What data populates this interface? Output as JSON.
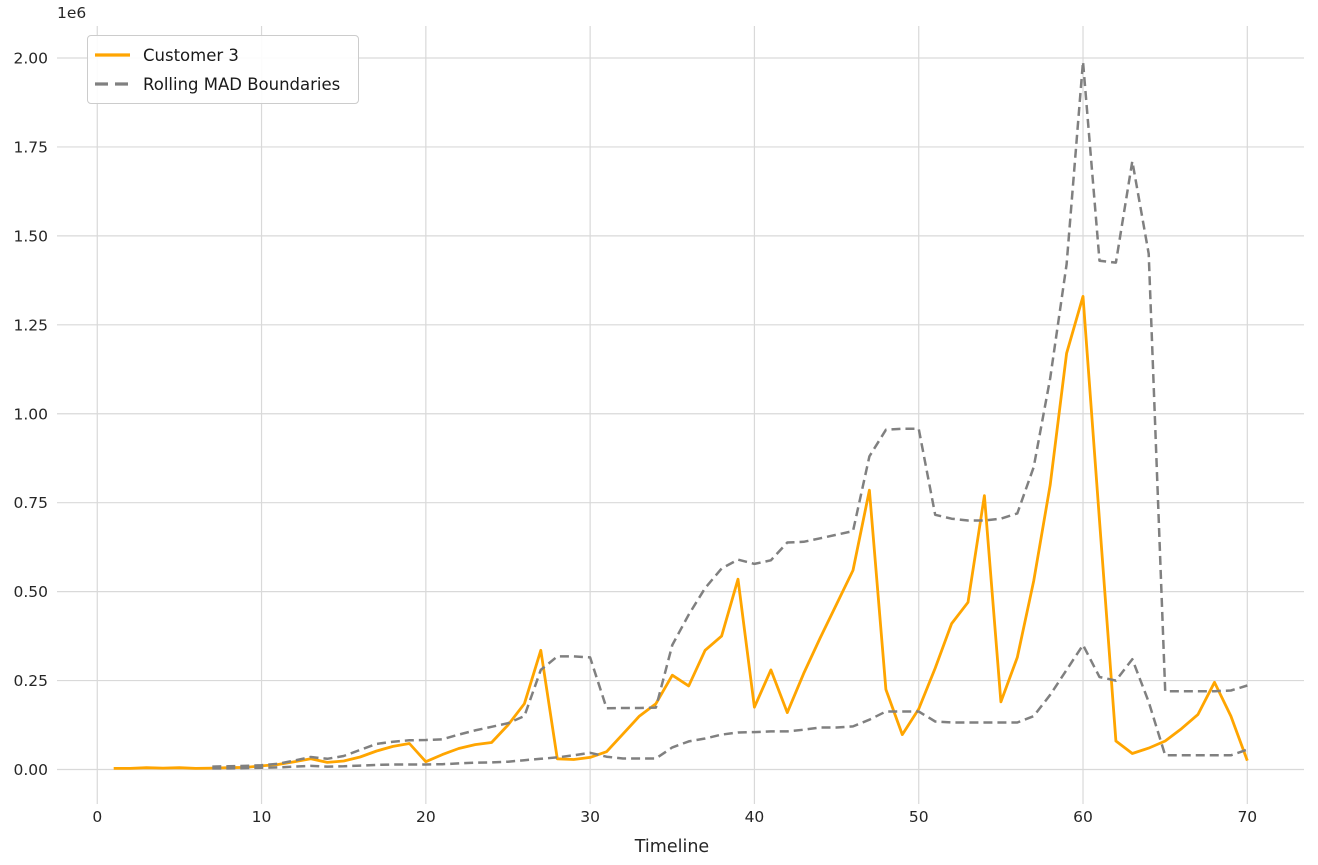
{
  "figure": {
    "background_color": "#ffffff",
    "grid_color": "#d9d9d9",
    "text_color": "#262626"
  },
  "chart_data": {
    "type": "line",
    "title": "",
    "xlabel": "Timeline",
    "ylabel": "",
    "y_offset_label": "1e6",
    "grid": true,
    "legend_position": "upper left",
    "xlim": [
      -2.45,
      73.45
    ],
    "ylim": [
      -97000,
      2090000
    ],
    "x_ticks": {
      "values": [
        0,
        10,
        20,
        30,
        40,
        50,
        60,
        70
      ],
      "labels": [
        "0",
        "10",
        "20",
        "30",
        "40",
        "50",
        "60",
        "70"
      ]
    },
    "y_ticks": {
      "values": [
        0,
        250000,
        500000,
        750000,
        1000000,
        1250000,
        1500000,
        1750000,
        2000000
      ],
      "labels": [
        "0.00",
        "0.25",
        "0.50",
        "0.75",
        "1.00",
        "1.25",
        "1.50",
        "1.75",
        "2.00"
      ]
    },
    "legend": [
      {
        "label": "Customer 3",
        "color": "#FFA500",
        "style": "solid"
      },
      {
        "label": "Rolling MAD Boundaries",
        "color": "#808080",
        "style": "dashed"
      }
    ],
    "x": [
      1,
      2,
      3,
      4,
      5,
      6,
      7,
      8,
      9,
      10,
      11,
      12,
      13,
      14,
      15,
      16,
      17,
      18,
      19,
      20,
      21,
      22,
      23,
      24,
      25,
      26,
      27,
      28,
      29,
      30,
      31,
      32,
      33,
      34,
      35,
      36,
      37,
      38,
      39,
      40,
      41,
      42,
      43,
      44,
      45,
      46,
      47,
      48,
      49,
      50,
      51,
      52,
      53,
      54,
      55,
      56,
      57,
      58,
      59,
      60,
      61,
      62,
      63,
      64,
      65,
      66,
      67,
      68,
      69,
      70
    ],
    "series": [
      {
        "name": "Customer 3",
        "color": "#FFA500",
        "style": "solid",
        "values": [
          3000,
          3000,
          5000,
          4000,
          5000,
          3000,
          4000,
          5000,
          6000,
          10000,
          14000,
          22000,
          30000,
          20000,
          24000,
          35000,
          52000,
          65000,
          73000,
          22000,
          42000,
          59000,
          70000,
          76000,
          125000,
          185000,
          335000,
          30000,
          28000,
          34000,
          50000,
          100000,
          150000,
          185000,
          265000,
          235000,
          335000,
          375000,
          535000,
          175000,
          280000,
          160000,
          270000,
          370000,
          465000,
          560000,
          785000,
          225000,
          98000,
          170000,
          285000,
          410000,
          470000,
          770000,
          190000,
          315000,
          530000,
          800000,
          1170000,
          1330000,
          700000,
          80000,
          45000,
          60000,
          80000,
          115000,
          155000,
          245000,
          150000,
          25000
        ]
      },
      {
        "name": "Rolling MAD Upper Boundary",
        "color": "#808080",
        "style": "dashed",
        "values": [
          null,
          null,
          null,
          null,
          null,
          null,
          8000,
          9000,
          10000,
          12000,
          16000,
          25000,
          35000,
          30000,
          38000,
          55000,
          72000,
          78000,
          82000,
          83000,
          85000,
          98000,
          110000,
          120000,
          130000,
          150000,
          280000,
          318000,
          318000,
          315000,
          172000,
          173000,
          173000,
          174000,
          350000,
          435000,
          510000,
          565000,
          590000,
          578000,
          588000,
          638000,
          640000,
          650000,
          660000,
          670000,
          880000,
          955000,
          958000,
          958000,
          716000,
          705000,
          700000,
          700000,
          705000,
          720000,
          850000,
          1100000,
          1420000,
          1990000,
          1430000,
          1425000,
          1710000,
          1450000,
          220000,
          220000,
          220000,
          220000,
          222000,
          236000
        ]
      },
      {
        "name": "Rolling MAD Lower Boundary",
        "color": "#808080",
        "style": "dashed",
        "values": [
          null,
          null,
          null,
          null,
          null,
          null,
          3000,
          3000,
          4000,
          5000,
          6000,
          8000,
          10000,
          8000,
          9000,
          11000,
          13000,
          14000,
          14000,
          14000,
          15000,
          17000,
          19000,
          20000,
          22000,
          26000,
          30000,
          34000,
          40000,
          47000,
          36000,
          31000,
          31000,
          31000,
          62000,
          79000,
          87000,
          98000,
          104000,
          105000,
          107000,
          107000,
          112000,
          118000,
          118000,
          121000,
          140000,
          163000,
          163000,
          163000,
          135000,
          132000,
          132000,
          132000,
          132000,
          132000,
          150000,
          210000,
          280000,
          350000,
          260000,
          250000,
          310000,
          190000,
          40000,
          40000,
          40000,
          40000,
          40000,
          56000
        ]
      }
    ]
  }
}
